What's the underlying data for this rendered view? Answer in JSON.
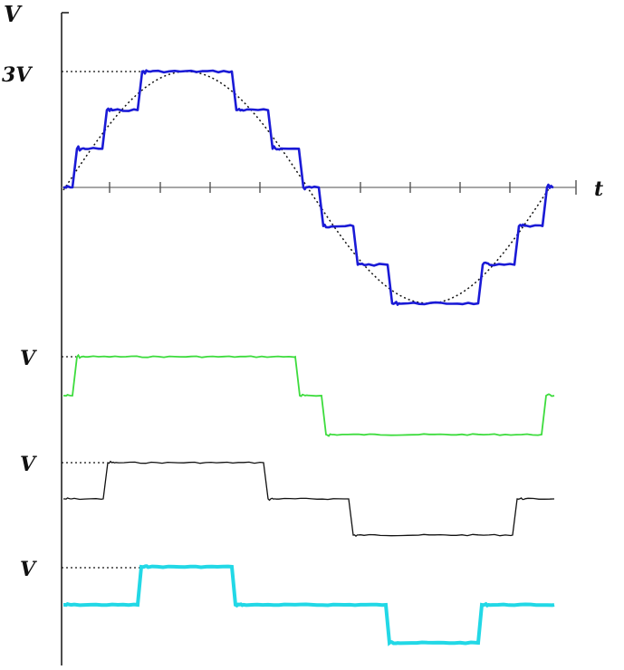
{
  "labels": {
    "y_axis": "V",
    "t_axis": "t",
    "peak": "3V",
    "level_1": "V",
    "level_2": "V",
    "level_3": "V"
  },
  "colors": {
    "sum": "#1a1ad6",
    "sine": "#111111",
    "wave_1": "#3ddc3d",
    "wave_2": "#111111",
    "wave_3": "#22d8e6",
    "axis": "#222222",
    "time_axis": "#888888"
  },
  "waveforms": {
    "sum_levels_in_V": [
      0,
      1,
      2,
      3,
      2,
      1,
      0,
      -1,
      -2,
      -3,
      -2,
      -1,
      0
    ],
    "wave_1_levels_in_V": [
      0,
      1,
      0,
      -1,
      0
    ],
    "wave_2_levels_in_V": [
      0,
      1,
      0,
      -1,
      0
    ],
    "wave_3_levels_in_V": [
      0,
      1,
      0,
      -1,
      0
    ]
  }
}
